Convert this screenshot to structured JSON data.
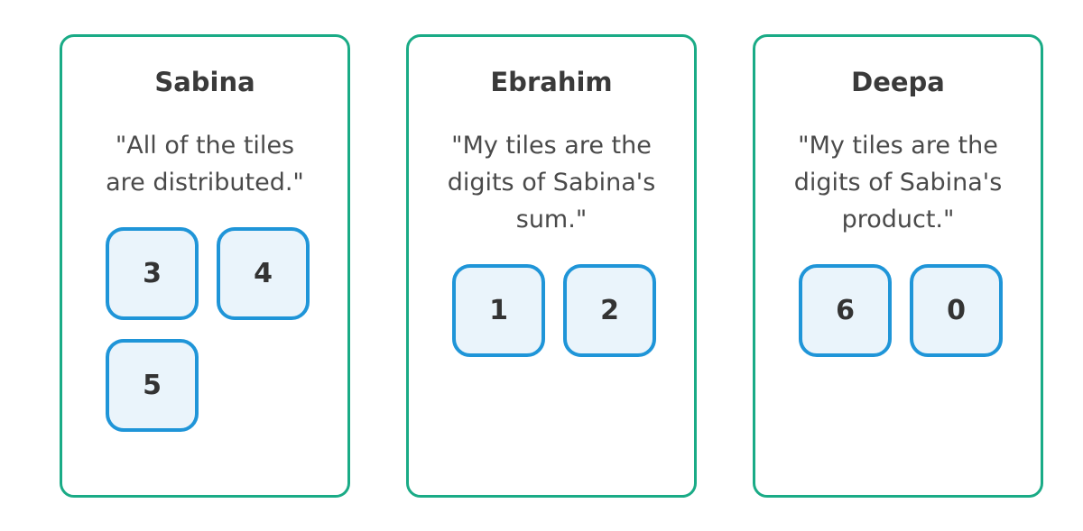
{
  "cards": [
    {
      "name": "Sabina",
      "quote": "\"All of the tiles are distributed.\"",
      "tiles": [
        "3",
        "4",
        "5"
      ]
    },
    {
      "name": "Ebrahim",
      "quote": "\"My tiles are the digits of Sabina's sum.\"",
      "tiles": [
        "1",
        "2"
      ]
    },
    {
      "name": "Deepa",
      "quote": "\"My tiles are the digits of Sabina's product.\"",
      "tiles": [
        "6",
        "0"
      ]
    }
  ],
  "colors": {
    "card_border": "#1aab86",
    "tile_border": "#1f95d8",
    "tile_fill": "#eaf4fb"
  }
}
